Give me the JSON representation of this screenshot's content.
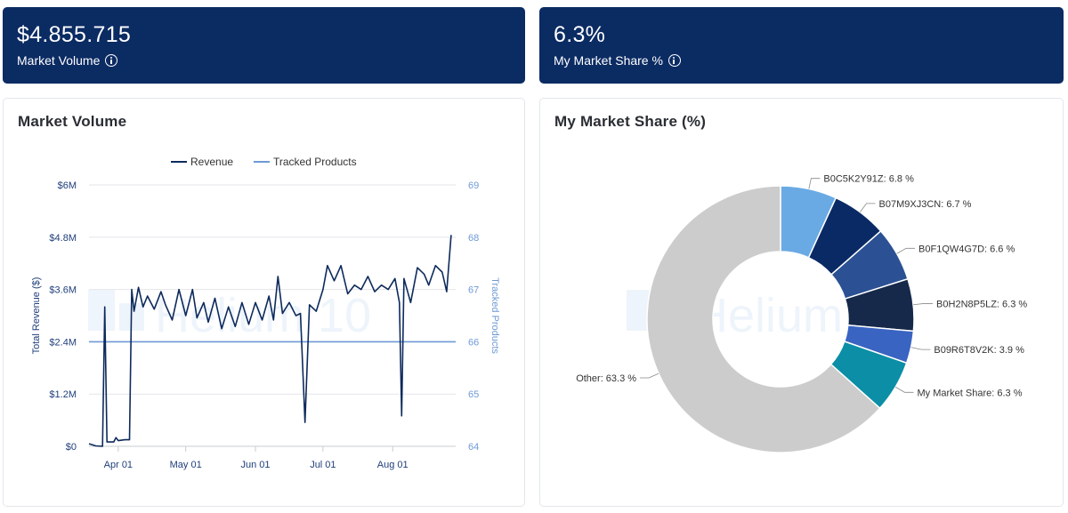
{
  "kpis": {
    "volume": {
      "value": "$4.855.715",
      "label": "Market Volume"
    },
    "share": {
      "value": "6.3%",
      "label": "My Market Share %"
    }
  },
  "colors": {
    "header_bg": "#0b2b63",
    "revenue": "#0d2a5c",
    "tracked": "#6e9ad6",
    "other": "#cccccc"
  },
  "watermark": "Helium 10",
  "chart_data": [
    {
      "type": "line",
      "title": "Market Volume",
      "ylabel": "Total Revenue ($)",
      "y2label": "Tracked Products",
      "legend": [
        "Revenue",
        "Tracked Products"
      ],
      "legend_position": "top",
      "ylim": [
        0,
        6000000
      ],
      "y2lim": [
        64,
        69
      ],
      "yticks": [
        "$0",
        "$1.2M",
        "$2.4M",
        "$3.6M",
        "$4.8M",
        "$6M"
      ],
      "y2ticks": [
        "64",
        "65",
        "66",
        "67",
        "68",
        "69"
      ],
      "xlim": [
        "2024-03-19",
        "2024-08-29"
      ],
      "xticks": [
        {
          "date": "2024-04-01",
          "label": "Apr 01"
        },
        {
          "date": "2024-05-01",
          "label": "May 01"
        },
        {
          "date": "2024-06-01",
          "label": "Jun 01"
        },
        {
          "date": "2024-07-01",
          "label": "Jul 01"
        },
        {
          "date": "2024-08-01",
          "label": "Aug 01"
        }
      ],
      "series": [
        {
          "name": "Revenue",
          "axis": "left",
          "points": [
            [
              "2024-03-19",
              60000
            ],
            [
              "2024-03-22",
              10000
            ],
            [
              "2024-03-25",
              0
            ],
            [
              "2024-03-26",
              3200000
            ],
            [
              "2024-03-27",
              100000
            ],
            [
              "2024-03-30",
              100000
            ],
            [
              "2024-03-31",
              200000
            ],
            [
              "2024-04-01",
              130000
            ],
            [
              "2024-04-04",
              150000
            ],
            [
              "2024-04-06",
              150000
            ],
            [
              "2024-04-07",
              3600000
            ],
            [
              "2024-04-08",
              3100000
            ],
            [
              "2024-04-10",
              3650000
            ],
            [
              "2024-04-12",
              3200000
            ],
            [
              "2024-04-14",
              3450000
            ],
            [
              "2024-04-17",
              3150000
            ],
            [
              "2024-04-20",
              3550000
            ],
            [
              "2024-04-22",
              3250000
            ],
            [
              "2024-04-25",
              2900000
            ],
            [
              "2024-04-28",
              3600000
            ],
            [
              "2024-05-01",
              3000000
            ],
            [
              "2024-05-04",
              3600000
            ],
            [
              "2024-05-06",
              2950000
            ],
            [
              "2024-05-09",
              3300000
            ],
            [
              "2024-05-11",
              2850000
            ],
            [
              "2024-05-14",
              3400000
            ],
            [
              "2024-05-17",
              2700000
            ],
            [
              "2024-05-20",
              3200000
            ],
            [
              "2024-05-23",
              2750000
            ],
            [
              "2024-05-26",
              3300000
            ],
            [
              "2024-05-29",
              2800000
            ],
            [
              "2024-06-01",
              3300000
            ],
            [
              "2024-06-04",
              2900000
            ],
            [
              "2024-06-07",
              3450000
            ],
            [
              "2024-06-09",
              2900000
            ],
            [
              "2024-06-11",
              3900000
            ],
            [
              "2024-06-13",
              3050000
            ],
            [
              "2024-06-16",
              3300000
            ],
            [
              "2024-06-19",
              3000000
            ],
            [
              "2024-06-21",
              3050000
            ],
            [
              "2024-06-23",
              550000
            ],
            [
              "2024-06-25",
              3250000
            ],
            [
              "2024-06-28",
              3100000
            ],
            [
              "2024-07-01",
              3600000
            ],
            [
              "2024-07-03",
              4150000
            ],
            [
              "2024-07-06",
              3800000
            ],
            [
              "2024-07-09",
              4150000
            ],
            [
              "2024-07-12",
              3500000
            ],
            [
              "2024-07-15",
              3700000
            ],
            [
              "2024-07-18",
              3600000
            ],
            [
              "2024-07-21",
              3900000
            ],
            [
              "2024-07-24",
              3550000
            ],
            [
              "2024-07-27",
              3700000
            ],
            [
              "2024-07-30",
              3600000
            ],
            [
              "2024-08-02",
              3850000
            ],
            [
              "2024-08-04",
              3300000
            ],
            [
              "2024-08-05",
              700000
            ],
            [
              "2024-08-06",
              3850000
            ],
            [
              "2024-08-09",
              3300000
            ],
            [
              "2024-08-12",
              4100000
            ],
            [
              "2024-08-15",
              3950000
            ],
            [
              "2024-08-17",
              3700000
            ],
            [
              "2024-08-20",
              4150000
            ],
            [
              "2024-08-23",
              4000000
            ],
            [
              "2024-08-25",
              3550000
            ],
            [
              "2024-08-27",
              4850000
            ]
          ]
        },
        {
          "name": "Tracked Products",
          "axis": "right",
          "points": [
            [
              "2024-03-19",
              66
            ],
            [
              "2024-08-29",
              66
            ]
          ]
        }
      ]
    },
    {
      "type": "pie",
      "title": "My Market Share (%)",
      "slices": [
        {
          "label": "B0C5K2Y91Z: 6.8 %",
          "value": 6.8,
          "color": "#6aaae4"
        },
        {
          "label": "B07M9XJ3CN: 6.7 %",
          "value": 6.7,
          "color": "#0a2a66"
        },
        {
          "label": "B0F1QW4G7D: 6.6 %",
          "value": 6.6,
          "color": "#2b5194"
        },
        {
          "label": "B0H2N8P5LZ: 6.3 %",
          "value": 6.3,
          "color": "#16294a"
        },
        {
          "label": "B09R6T8V2K: 3.9 %",
          "value": 3.9,
          "color": "#3a64c2"
        },
        {
          "label": "My Market Share: 6.3 %",
          "value": 6.3,
          "color": "#0b8ea6"
        },
        {
          "label": "Other: 63.3 %",
          "value": 63.3,
          "color": "#cccccc"
        }
      ]
    }
  ]
}
